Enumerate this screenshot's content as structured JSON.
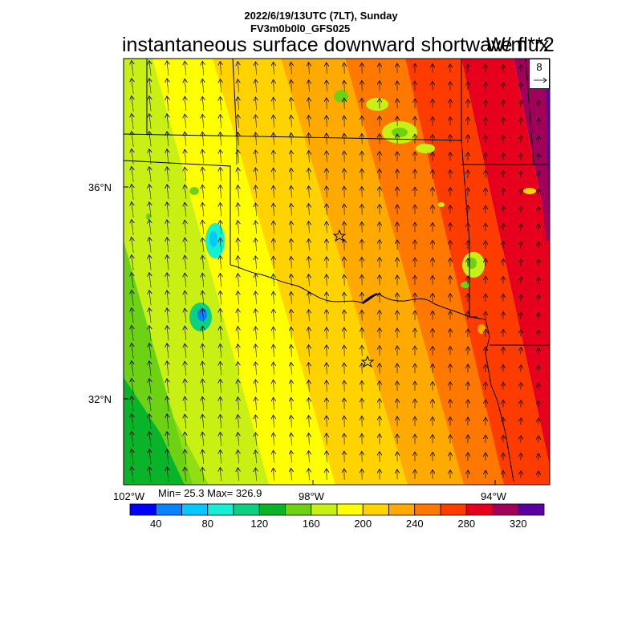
{
  "header": {
    "datetime": "2022/6/19/13UTC (7LT), Sunday",
    "model": "FV3m0b0l0_GFS025",
    "variable": "instantaneous surface downward shortwave flux",
    "units": "W/m**2"
  },
  "map": {
    "lat_labels": [
      "36°N",
      "32°N"
    ],
    "lon_labels": [
      "102°W",
      "98°W",
      "94°W"
    ],
    "stats": "Min= 25.3 Max= 326.9",
    "vector_reference": "8"
  },
  "colorbar": {
    "colors": [
      "#0000ff",
      "#0a82ff",
      "#05c8ff",
      "#14f0d2",
      "#0ad282",
      "#0ab428",
      "#6ed214",
      "#c8f014",
      "#ffff00",
      "#ffd200",
      "#ffaa00",
      "#ff7800",
      "#ff3c00",
      "#e6001e",
      "#a0005a",
      "#5a00a0"
    ],
    "labels": [
      "40",
      "80",
      "120",
      "160",
      "200",
      "240",
      "280",
      "320"
    ]
  }
}
